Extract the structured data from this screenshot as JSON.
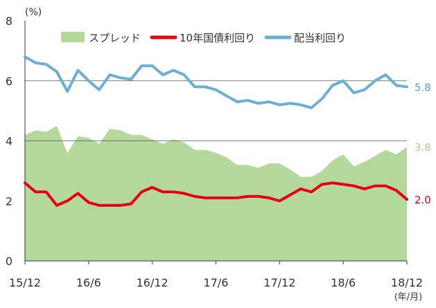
{
  "chart_data": {
    "type": "area",
    "unit_label": "(%)",
    "x_unit_label": "(年/月)",
    "xlabel": "",
    "ylabel": "",
    "ylim": [
      0,
      8
    ],
    "yticks": [
      "0",
      "2",
      "4",
      "6",
      "8"
    ],
    "xticks": [
      {
        "label": "15/12",
        "x": 0
      },
      {
        "label": "16/6",
        "x": 6
      },
      {
        "label": "16/12",
        "x": 12
      },
      {
        "label": "17/6",
        "x": 18
      },
      {
        "label": "17/12",
        "x": 24
      },
      {
        "label": "18/6",
        "x": 30
      },
      {
        "label": "18/12",
        "x": 36
      }
    ],
    "gridlines": [
      4,
      6
    ],
    "legend_position": "top",
    "x": [
      0,
      1,
      2,
      3,
      4,
      5,
      6,
      7,
      8,
      9,
      10,
      11,
      12,
      13,
      14,
      15,
      16,
      17,
      18,
      19,
      20,
      21,
      22,
      23,
      24,
      25,
      26,
      27,
      28,
      29,
      30,
      31,
      32,
      33,
      34,
      35,
      36
    ],
    "series": [
      {
        "name": "スプレッド",
        "kind": "area",
        "color": "#b5d99c",
        "end_label": "3.8",
        "end_label_color": "#a8cf8c",
        "values": [
          4.2,
          4.35,
          4.3,
          4.5,
          3.6,
          4.15,
          4.1,
          3.9,
          4.4,
          4.35,
          4.2,
          4.2,
          4.05,
          3.9,
          4.05,
          3.95,
          3.7,
          3.7,
          3.6,
          3.45,
          3.2,
          3.2,
          3.1,
          3.25,
          3.25,
          3.05,
          2.8,
          2.8,
          3.0,
          3.35,
          3.55,
          3.15,
          3.3,
          3.5,
          3.7,
          3.55,
          3.8
        ]
      },
      {
        "name": "10年国債利回り",
        "kind": "line",
        "color": "#e60012",
        "end_label": "2.0",
        "end_label_color": "#e60012",
        "values": [
          2.6,
          2.3,
          2.3,
          1.85,
          2.0,
          2.25,
          1.95,
          1.85,
          1.85,
          1.85,
          1.9,
          2.3,
          2.45,
          2.3,
          2.3,
          2.25,
          2.15,
          2.1,
          2.1,
          2.1,
          2.1,
          2.15,
          2.15,
          2.1,
          2.0,
          2.2,
          2.4,
          2.3,
          2.55,
          2.6,
          2.55,
          2.5,
          2.4,
          2.5,
          2.5,
          2.35,
          2.05
        ]
      },
      {
        "name": "配当利回り",
        "kind": "line",
        "color": "#6baed6",
        "end_label": "5.8",
        "end_label_color": "#5b9ec9",
        "values": [
          6.8,
          6.6,
          6.55,
          6.3,
          5.65,
          6.35,
          6.0,
          5.7,
          6.2,
          6.1,
          6.05,
          6.5,
          6.5,
          6.2,
          6.35,
          6.2,
          5.8,
          5.8,
          5.7,
          5.5,
          5.3,
          5.35,
          5.25,
          5.3,
          5.2,
          5.25,
          5.2,
          5.1,
          5.4,
          5.85,
          6.0,
          5.6,
          5.7,
          6.0,
          6.2,
          5.85,
          5.8
        ]
      }
    ]
  }
}
